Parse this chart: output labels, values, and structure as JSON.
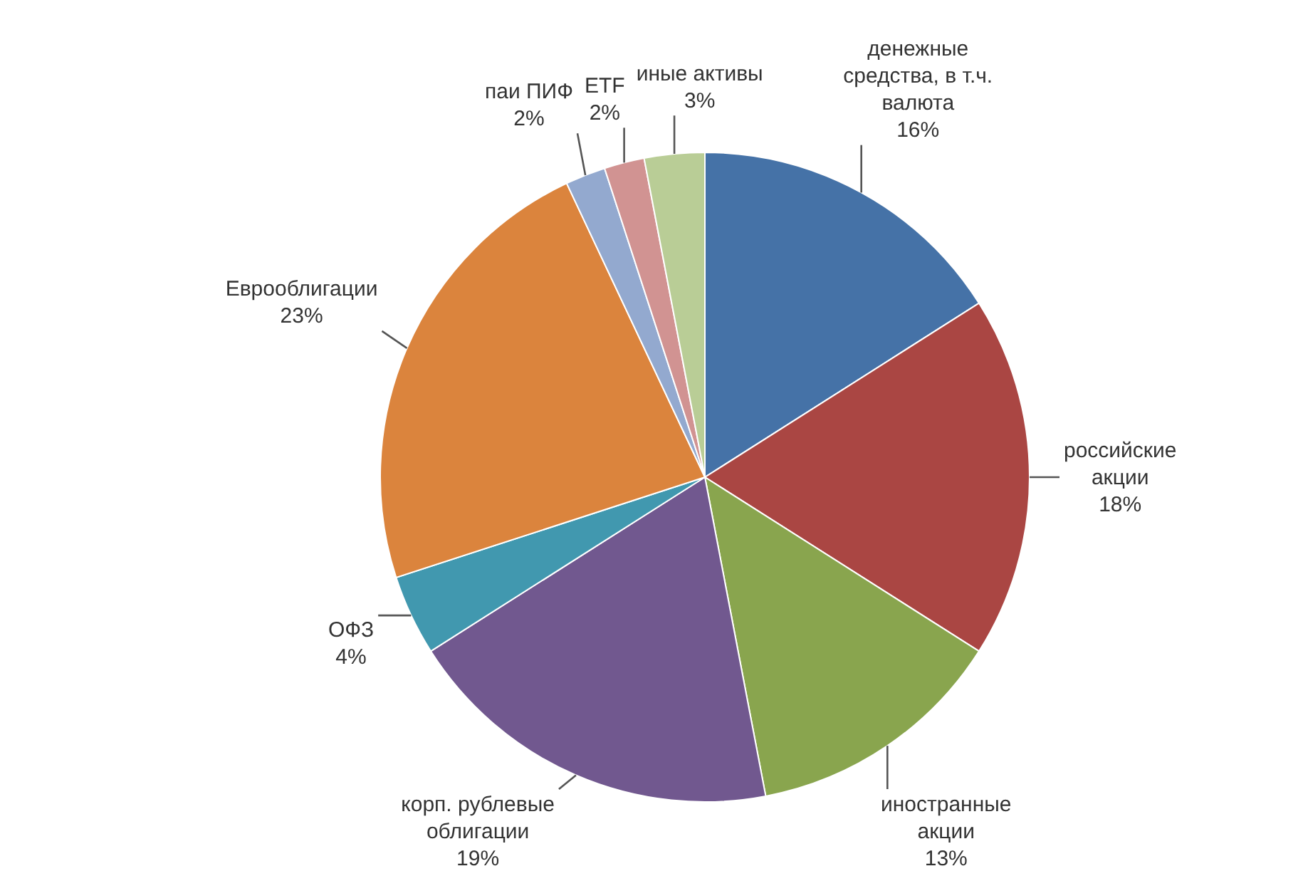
{
  "chart_data": {
    "type": "pie",
    "categories": [
      "денежные средства, в т.ч. валюта",
      "российские акции",
      "иностранные акции",
      "корп. рублевые облигации",
      "ОФЗ",
      "Еврооблигации",
      "паи ПИФ",
      "ETF",
      "иные активы"
    ],
    "values": [
      16,
      18,
      13,
      19,
      4,
      23,
      2,
      2,
      3
    ],
    "value_labels": [
      "16%",
      "18%",
      "13%",
      "19%",
      "4%",
      "23%",
      "2%",
      "2%",
      "3%"
    ],
    "colors": [
      "#4572a7",
      "#aa4643",
      "#89a54e",
      "#71588f",
      "#4198af",
      "#db843d",
      "#93a9cf",
      "#d19392",
      "#b9cd96"
    ]
  }
}
